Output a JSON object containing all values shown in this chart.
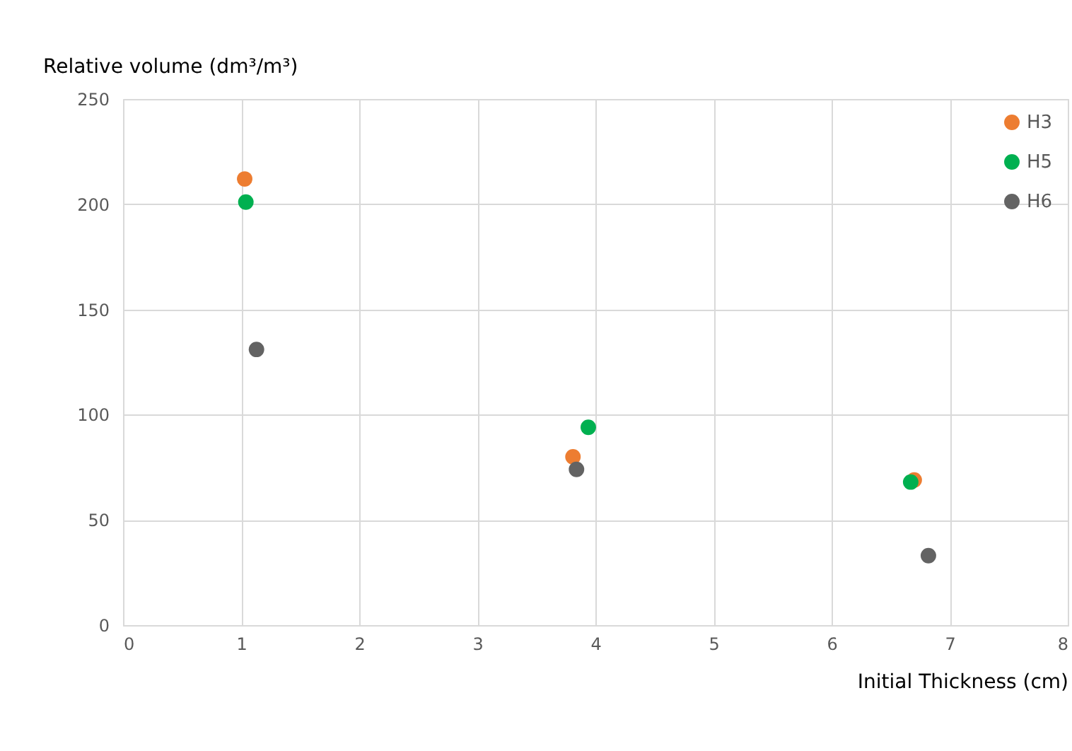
{
  "chart_data": {
    "type": "scatter",
    "xlabel": "Initial Thickness (cm)",
    "ylabel": "Relative volume (dm³/m³)",
    "xlim": [
      0,
      8
    ],
    "xticks": [
      0,
      1,
      2,
      3,
      4,
      5,
      6,
      7,
      8
    ],
    "ylim": [
      0,
      250
    ],
    "yticks": [
      0,
      50,
      100,
      150,
      200,
      250
    ],
    "grid": true,
    "legend": "top right",
    "marker": "circle",
    "series": [
      {
        "name": "H3",
        "color": "#ed7d31",
        "x": [
          1.03,
          3.81,
          6.7
        ],
        "values": [
          212,
          80,
          69
        ]
      },
      {
        "name": "H5",
        "color": "#00b050",
        "x": [
          1.04,
          3.94,
          6.67
        ],
        "values": [
          201,
          94,
          68
        ]
      },
      {
        "name": "H6",
        "color": "#636363",
        "x": [
          1.13,
          3.84,
          6.82
        ],
        "values": [
          131,
          74,
          33
        ]
      }
    ]
  }
}
